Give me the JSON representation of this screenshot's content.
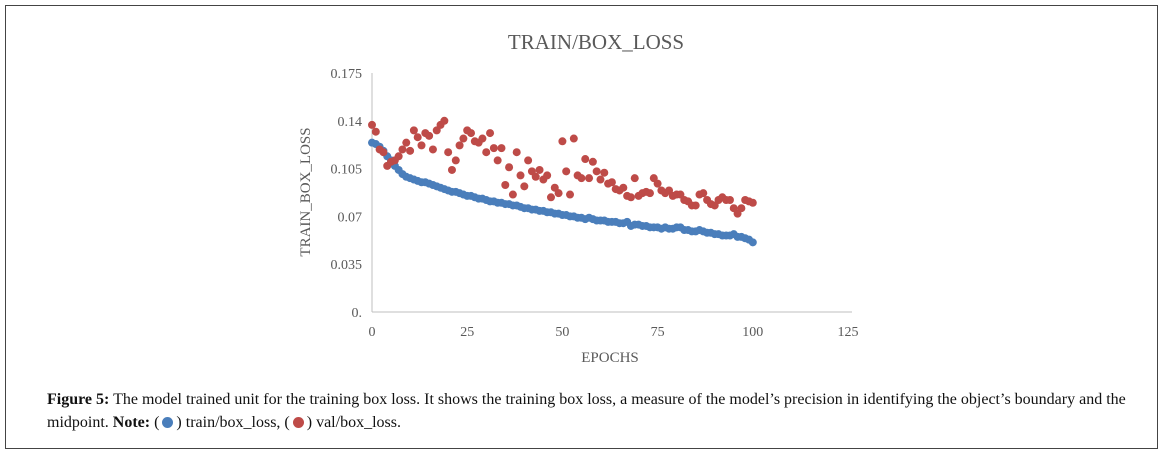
{
  "chart_data": {
    "type": "scatter",
    "title": "TRAIN/BOX_LOSS",
    "xlabel": "EPOCHS",
    "ylabel": "TRAIN_BOX_LOSS",
    "xlim": [
      0,
      125
    ],
    "ylim": [
      0,
      0.175
    ],
    "xticks": [
      "0",
      "25",
      "50",
      "75",
      "100",
      "125"
    ],
    "yticks": [
      "0.",
      "0.035",
      "0.07",
      "0.105",
      "0.14",
      "0.175"
    ],
    "grid": false,
    "series": [
      {
        "name": "train/box_loss",
        "color": "#4a7ebb",
        "values": [
          0.124,
          0.123,
          0.121,
          0.118,
          0.114,
          0.111,
          0.107,
          0.104,
          0.101,
          0.099,
          0.098,
          0.097,
          0.096,
          0.095,
          0.095,
          0.094,
          0.093,
          0.092,
          0.091,
          0.09,
          0.089,
          0.088,
          0.088,
          0.087,
          0.086,
          0.085,
          0.085,
          0.084,
          0.083,
          0.083,
          0.082,
          0.081,
          0.081,
          0.08,
          0.08,
          0.079,
          0.079,
          0.078,
          0.078,
          0.077,
          0.076,
          0.076,
          0.075,
          0.075,
          0.074,
          0.074,
          0.073,
          0.073,
          0.072,
          0.072,
          0.071,
          0.071,
          0.07,
          0.07,
          0.069,
          0.069,
          0.068,
          0.069,
          0.068,
          0.067,
          0.067,
          0.067,
          0.066,
          0.066,
          0.066,
          0.065,
          0.065,
          0.066,
          0.063,
          0.064,
          0.064,
          0.063,
          0.063,
          0.062,
          0.062,
          0.062,
          0.061,
          0.062,
          0.061,
          0.061,
          0.062,
          0.062,
          0.06,
          0.06,
          0.059,
          0.059,
          0.06,
          0.059,
          0.058,
          0.058,
          0.057,
          0.057,
          0.056,
          0.056,
          0.056,
          0.057,
          0.055,
          0.055,
          0.054,
          0.053,
          0.051
        ]
      },
      {
        "name": "val/box_loss",
        "color": "#be4b48",
        "values": [
          0.137,
          0.132,
          0.119,
          0.117,
          0.107,
          0.11,
          0.111,
          0.114,
          0.119,
          0.124,
          0.118,
          0.133,
          0.128,
          0.122,
          0.131,
          0.129,
          0.119,
          0.133,
          0.137,
          0.14,
          0.117,
          0.104,
          0.111,
          0.122,
          0.127,
          0.133,
          0.131,
          0.125,
          0.124,
          0.127,
          0.117,
          0.131,
          0.12,
          0.111,
          0.12,
          0.093,
          0.106,
          0.086,
          0.117,
          0.1,
          0.092,
          0.111,
          0.103,
          0.099,
          0.104,
          0.097,
          0.1,
          0.084,
          0.091,
          0.087,
          0.125,
          0.103,
          0.086,
          0.127,
          0.1,
          0.098,
          0.112,
          0.098,
          0.11,
          0.103,
          0.097,
          0.102,
          0.094,
          0.095,
          0.09,
          0.089,
          0.091,
          0.085,
          0.084,
          0.098,
          0.085,
          0.087,
          0.088,
          0.087,
          0.098,
          0.094,
          0.089,
          0.087,
          0.089,
          0.085,
          0.086,
          0.086,
          0.082,
          0.081,
          0.078,
          0.078,
          0.086,
          0.087,
          0.082,
          0.079,
          0.078,
          0.082,
          0.084,
          0.082,
          0.082,
          0.076,
          0.072,
          0.076,
          0.082,
          0.081,
          0.08
        ]
      }
    ]
  },
  "caption": {
    "figure_label": "Figure 5:",
    "text": " The model trained unit for the training box loss. It shows the training box loss, a measure of the model’s precision in identifying the object’s boundary and the midpoint. ",
    "note_label": "Note:",
    "open1": " (",
    "legend1": ") train/box_loss, (",
    "legend2": ") val/box_loss."
  }
}
